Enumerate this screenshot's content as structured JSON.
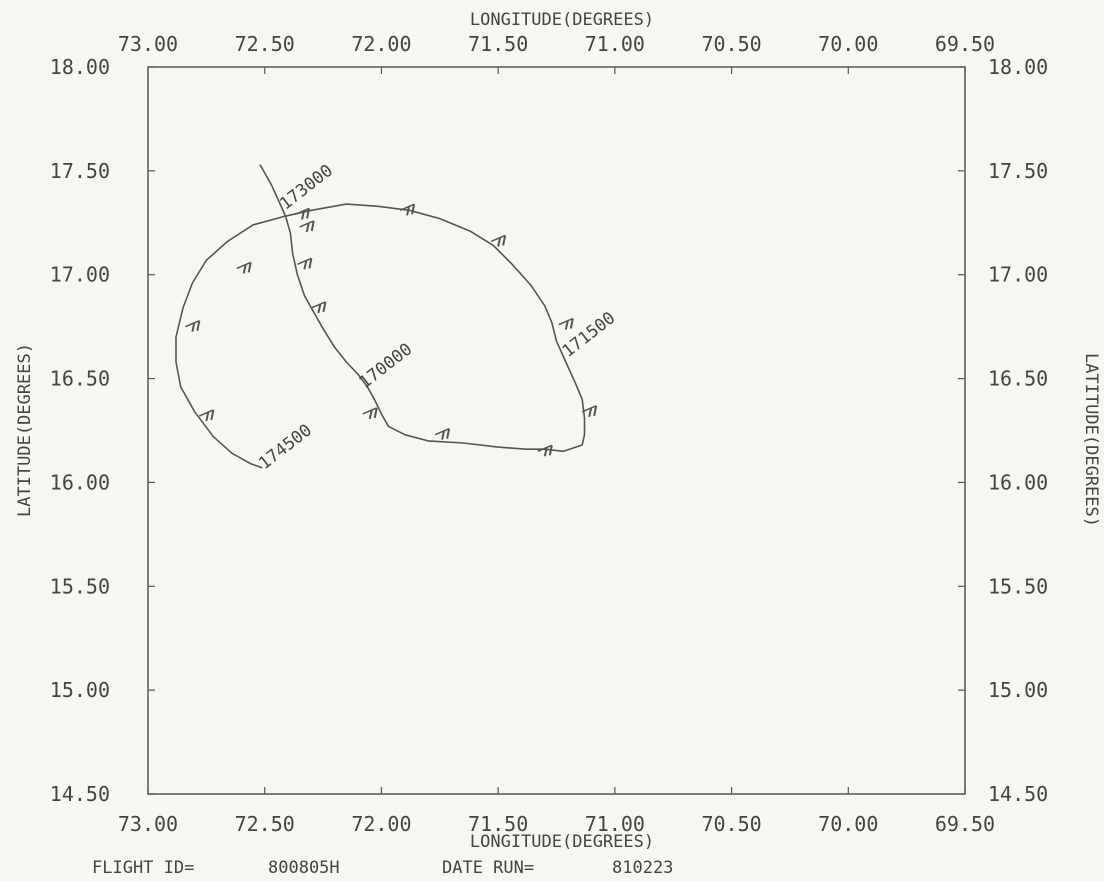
{
  "chart_data": {
    "type": "line",
    "xlabel": "LONGITUDE(DEGREES)",
    "ylabel": "LATITUDE(DEGREES)",
    "xlim": [
      73.0,
      69.5
    ],
    "ylim": [
      14.5,
      18.0
    ],
    "x_reversed": true,
    "x_ticks": [
      73.0,
      72.5,
      72.0,
      71.5,
      71.0,
      70.5,
      70.0,
      69.5
    ],
    "y_ticks": [
      18.0,
      17.5,
      17.0,
      16.5,
      16.0,
      15.5,
      15.0,
      14.5
    ],
    "x_tick_labels": [
      "73.00",
      "72.50",
      "72.00",
      "71.50",
      "71.00",
      "70.50",
      "70.00",
      "69.50"
    ],
    "y_tick_labels": [
      "18.00",
      "17.50",
      "17.00",
      "16.50",
      "16.00",
      "15.50",
      "15.00",
      "14.50"
    ],
    "grid": false,
    "series": [
      {
        "values": [
          [
            72.52,
            17.53
          ],
          [
            72.47,
            17.43
          ],
          [
            72.43,
            17.33
          ],
          [
            72.41,
            17.28
          ],
          [
            72.39,
            17.2
          ],
          [
            72.38,
            17.1
          ],
          [
            72.36,
            17.0
          ],
          [
            72.33,
            16.9
          ],
          [
            72.29,
            16.82
          ],
          [
            72.25,
            16.74
          ],
          [
            72.2,
            16.65
          ],
          [
            72.15,
            16.58
          ],
          [
            72.1,
            16.52
          ],
          [
            72.06,
            16.46
          ],
          [
            72.03,
            16.4
          ],
          [
            72.0,
            16.33
          ],
          [
            71.97,
            16.27
          ],
          [
            71.9,
            16.23
          ],
          [
            71.8,
            16.2
          ],
          [
            71.65,
            16.19
          ],
          [
            71.5,
            16.17
          ],
          [
            71.38,
            16.16
          ],
          [
            71.3,
            16.16
          ],
          [
            71.22,
            16.15
          ],
          [
            71.14,
            16.18
          ],
          [
            71.13,
            16.23
          ],
          [
            71.13,
            16.31
          ],
          [
            71.14,
            16.4
          ],
          [
            71.17,
            16.48
          ],
          [
            71.21,
            16.58
          ],
          [
            71.25,
            16.68
          ],
          [
            71.27,
            16.77
          ],
          [
            71.3,
            16.85
          ],
          [
            71.36,
            16.95
          ],
          [
            71.44,
            17.05
          ],
          [
            71.52,
            17.14
          ],
          [
            71.62,
            17.21
          ],
          [
            71.75,
            17.27
          ],
          [
            71.88,
            17.31
          ],
          [
            72.02,
            17.33
          ],
          [
            72.15,
            17.34
          ],
          [
            72.3,
            17.31
          ],
          [
            72.42,
            17.28
          ],
          [
            72.55,
            17.24
          ],
          [
            72.66,
            17.16
          ],
          [
            72.75,
            17.07
          ],
          [
            72.81,
            16.96
          ],
          [
            72.85,
            16.84
          ],
          [
            72.88,
            16.7
          ],
          [
            72.88,
            16.58
          ],
          [
            72.86,
            16.46
          ],
          [
            72.8,
            16.34
          ],
          [
            72.72,
            16.22
          ],
          [
            72.64,
            16.14
          ],
          [
            72.56,
            16.09
          ],
          [
            72.51,
            16.07
          ]
        ]
      }
    ],
    "annotations": [
      {
        "text": "173000",
        "at": [
          72.42,
          17.31
        ]
      },
      {
        "text": "171500",
        "at": [
          71.21,
          16.6
        ]
      },
      {
        "text": "170000",
        "at": [
          72.08,
          16.45
        ]
      },
      {
        "text": "174500",
        "at": [
          72.51,
          16.06
        ]
      }
    ],
    "wind_barbs": [
      [
        72.37,
        17.29
      ],
      [
        72.35,
        17.23
      ],
      [
        72.36,
        17.05
      ],
      [
        72.3,
        16.84
      ],
      [
        72.08,
        16.33
      ],
      [
        71.77,
        16.23
      ],
      [
        71.33,
        16.15
      ],
      [
        71.14,
        16.34
      ],
      [
        71.24,
        16.76
      ],
      [
        71.53,
        17.16
      ],
      [
        71.92,
        17.31
      ],
      [
        72.62,
        17.03
      ],
      [
        72.84,
        16.75
      ],
      [
        72.78,
        16.32
      ]
    ]
  },
  "footer": {
    "flight_id_label": "FLIGHT ID=",
    "flight_id_value": "800805H",
    "date_run_label": "DATE RUN=",
    "date_run_value": "810223"
  }
}
